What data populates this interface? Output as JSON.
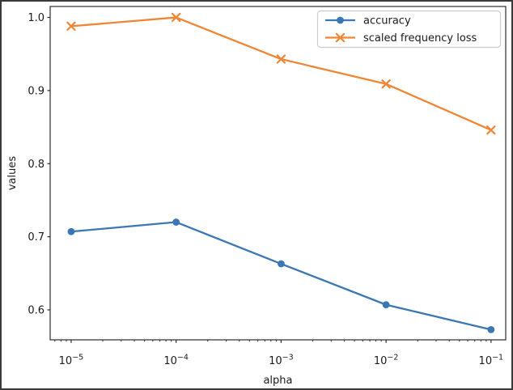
{
  "figure": {
    "background": "#ffffff",
    "border_color": "#3a3a3a",
    "text_color": "#1a1a1a",
    "spine_color": "#2b2b2b"
  },
  "chart_data": {
    "type": "line",
    "title": "",
    "xlabel": "alpha",
    "ylabel": "values",
    "xscale": "log",
    "grid": false,
    "x": [
      1e-05,
      0.0001,
      0.001,
      0.01,
      0.1
    ],
    "x_tick_exponents": [
      -5,
      -4,
      -3,
      -2,
      -1
    ],
    "x_tick_labels": [
      "10^-5",
      "10^-4",
      "10^-3",
      "10^-2",
      "10^-1"
    ],
    "y_ticks": [
      0.6,
      0.7,
      0.8,
      0.9,
      1.0
    ],
    "y_tick_labels": [
      "0.6",
      "0.7",
      "0.8",
      "0.9",
      "1.0"
    ],
    "xlim_log10": [
      -5.2,
      -0.86
    ],
    "ylim": [
      0.559,
      1.015
    ],
    "series": [
      {
        "name": "accuracy",
        "color": "#3b77b4",
        "marker": "circle",
        "values": [
          0.707,
          0.72,
          0.663,
          0.607,
          0.573
        ]
      },
      {
        "name": "scaled frequency loss",
        "color": "#ef8636",
        "marker": "x",
        "values": [
          0.988,
          1.0,
          0.943,
          0.909,
          0.846
        ]
      }
    ],
    "legend": {
      "position": "upper right",
      "border_color": "#cccccc",
      "background": "#ffffff",
      "entries": [
        "accuracy",
        "scaled frequency loss"
      ]
    }
  }
}
